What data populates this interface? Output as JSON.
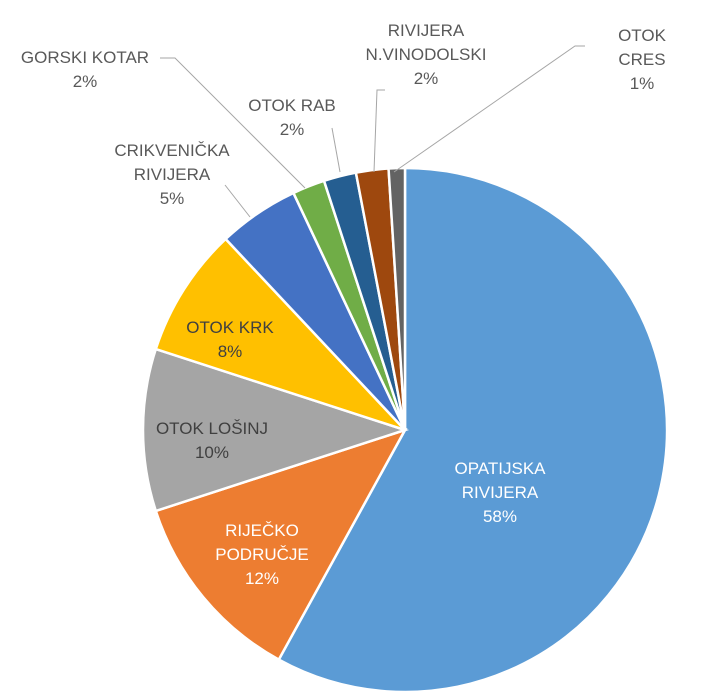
{
  "chart_data": {
    "type": "pie",
    "categories": [
      "OPATIJSKA\nRIVIJERA",
      "RIJEČKO\nPODRUČJE",
      "OTOK LOŠINJ",
      "OTOK KRK",
      "CRIKVENIČKA\nRIVIJERA",
      "GORSKI KOTAR",
      "OTOK RAB",
      "RIVIJERA\nN.VINODOLSKI",
      "OTOK CRES"
    ],
    "values": [
      58,
      12,
      10,
      8,
      5,
      2,
      2,
      2,
      1
    ],
    "value_labels": [
      "58%",
      "12%",
      "10%",
      "8%",
      "5%",
      "2%",
      "2%",
      "2%",
      "1%"
    ],
    "colors": [
      "#5b9bd5",
      "#ed7d31",
      "#a5a5a5",
      "#ffc000",
      "#4472c4",
      "#70ad47",
      "#255e91",
      "#9e480e",
      "#636363"
    ]
  }
}
